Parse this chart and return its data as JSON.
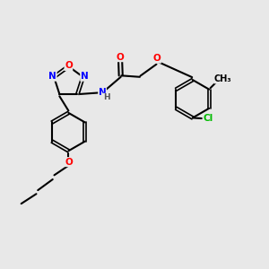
{
  "bg_color": "#e8e8e8",
  "atom_colors": {
    "O": "#ff0000",
    "N": "#0000ff",
    "Cl": "#00bb00",
    "C": "#000000",
    "H": "#555555"
  },
  "bond_width": 1.5,
  "fig_size": [
    3.0,
    3.0
  ],
  "dpi": 100
}
